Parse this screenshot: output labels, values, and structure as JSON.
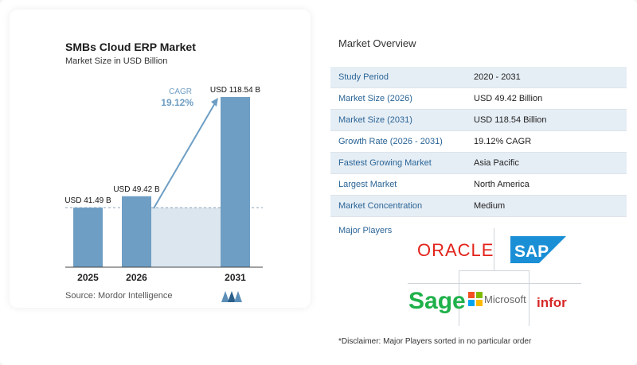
{
  "chart_data": {
    "type": "bar",
    "title": "SMBs Cloud ERP Market",
    "subtitle": "Market Size in USD Billion",
    "categories": [
      "2025",
      "2026",
      "2031"
    ],
    "values": [
      41.49,
      49.42,
      118.54
    ],
    "data_labels": [
      "USD 41.49 B",
      "USD 49.42 B",
      "USD 118.54 B"
    ],
    "cagr_label": "CAGR",
    "cagr_value": "19.12%",
    "ylim": [
      0,
      118.54
    ],
    "bar_color": "#6e9ec4",
    "shade_color": "#dbe6ef",
    "source": "Source:  Mordor Intelligence"
  },
  "overview": {
    "title": "Market Overview",
    "rows": [
      {
        "label": "Study Period",
        "value": "2020 - 2031"
      },
      {
        "label": "Market Size (2026)",
        "value": "USD 49.42 Billion"
      },
      {
        "label": "Market Size (2031)",
        "value": "USD 118.54 Billion"
      },
      {
        "label": "Growth Rate (2026 - 2031)",
        "value": "19.12% CAGR"
      },
      {
        "label": "Fastest Growing Market",
        "value": "Asia Pacific"
      },
      {
        "label": "Largest Market",
        "value": "North America"
      },
      {
        "label": "Market Concentration",
        "value": "Medium"
      }
    ]
  },
  "players": {
    "title": "Major Players",
    "logos": [
      "ORACLE",
      "SAP",
      "Sage",
      "Microsoft",
      "infor"
    ],
    "disclaimer": "*Disclaimer: Major Players sorted in no particular order"
  }
}
